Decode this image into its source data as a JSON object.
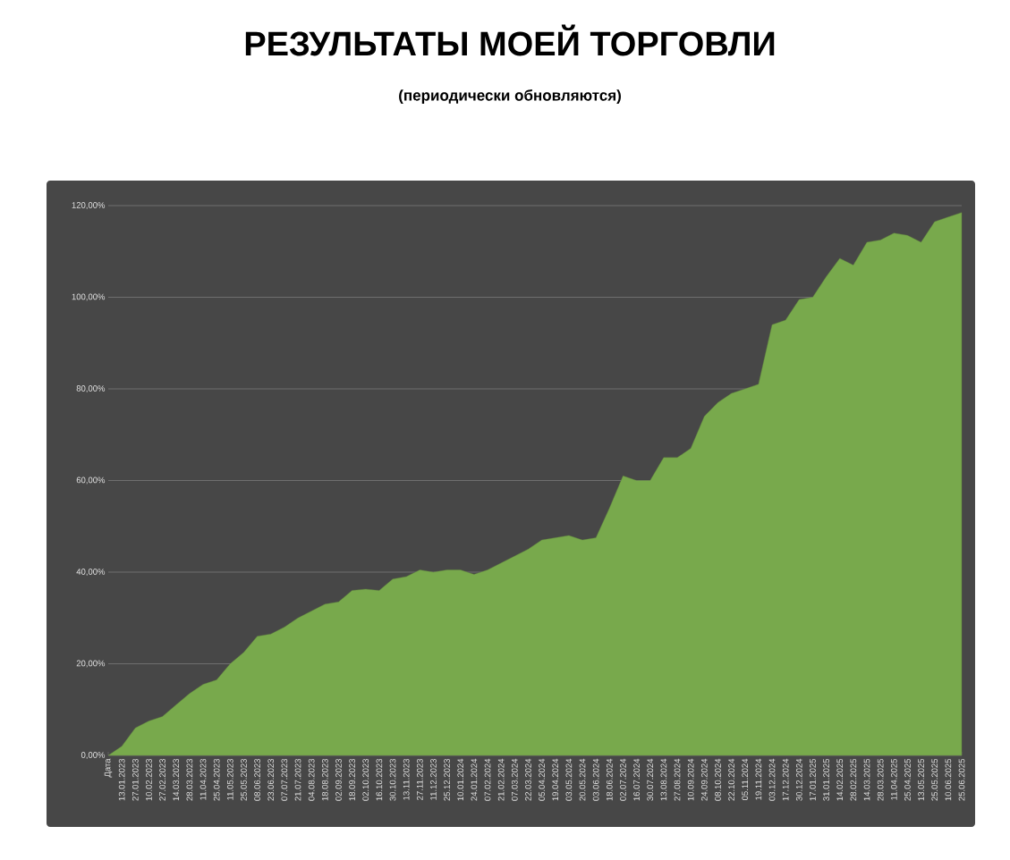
{
  "chart_data": {
    "type": "area",
    "title": "РЕЗУЛЬТАТЫ МОЕЙ ТОРГОВЛИ",
    "subtitle": "(периодически обновляются)",
    "categories": [
      "Дата",
      "13.01.2023",
      "27.01.2023",
      "10.02.2023",
      "27.02.2023",
      "14.03.2023",
      "28.03.2023",
      "11.04.2023",
      "25.04.2023",
      "11.05.2023",
      "25.05.2023",
      "08.06.2023",
      "23.06.2023",
      "07.07.2023",
      "21.07.2023",
      "04.08.2023",
      "18.08.2023",
      "02.09.2023",
      "18.09.2023",
      "02.10.2023",
      "16.10.2023",
      "30.10.2023",
      "13.11.2023",
      "27.11.2023",
      "11.12.2023",
      "25.12.2023",
      "10.01.2024",
      "24.01.2024",
      "07.02.2024",
      "21.02.2024",
      "07.03.2024",
      "22.03.2024",
      "05.04.2024",
      "19.04.2024",
      "03.05.2024",
      "20.05.2024",
      "03.06.2024",
      "18.06.2024",
      "02.07.2024",
      "16.07.2024",
      "30.07.2024",
      "13.08.2024",
      "27.08.2024",
      "10.09.2024",
      "24.09.2024",
      "08.10.2024",
      "22.10.2024",
      "05.11.2024",
      "19.11.2024",
      "03.12.2024",
      "17.12.2024",
      "30.12.2024",
      "17.01.2025",
      "31.01.2025",
      "14.02.2025",
      "28.02.2025",
      "14.03.2025",
      "28.03.2025",
      "11.04.2025",
      "25.04.2025",
      "13.05.2025",
      "25.05.2025",
      "10.06.2025",
      "25.06.2025"
    ],
    "values": [
      0,
      2,
      6,
      7.5,
      8.5,
      11,
      13.5,
      15.5,
      16.5,
      20,
      22.5,
      26,
      26.5,
      28,
      30,
      31.5,
      33,
      33.5,
      36,
      36.3,
      36,
      38.5,
      39,
      40.5,
      40,
      40.5,
      40.5,
      39.5,
      40.5,
      42,
      43.5,
      45,
      47,
      47.5,
      48,
      47,
      47.5,
      54,
      61,
      60,
      60,
      65,
      65,
      67,
      74,
      77,
      79,
      80,
      81,
      94,
      95,
      99.5,
      100,
      104.5,
      108.5,
      107,
      112,
      112.5,
      114,
      113.5,
      112,
      116.5,
      117.5,
      118.5
    ],
    "color": "#78a94c",
    "ylim": [
      0,
      120
    ],
    "yticks": [
      {
        "value": 0,
        "label": "0,00%"
      },
      {
        "value": 20,
        "label": "20,00%"
      },
      {
        "value": 40,
        "label": "40,00%"
      },
      {
        "value": 60,
        "label": "60,00%"
      },
      {
        "value": 80,
        "label": "80,00%"
      },
      {
        "value": 100,
        "label": "100,00%"
      },
      {
        "value": 120,
        "label": "120,00%"
      }
    ],
    "grid": "y"
  }
}
